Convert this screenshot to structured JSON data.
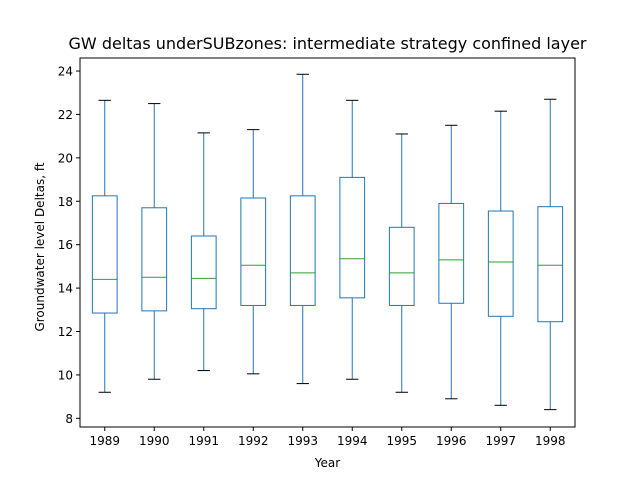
{
  "chart_data": {
    "type": "box",
    "title": "GW deltas underSUBzones: intermediate strategy confined layer",
    "xlabel": "Year",
    "ylabel": "Groundwater level Deltas, ft",
    "ylim": [
      7.6,
      24.6
    ],
    "yticks": [
      8,
      10,
      12,
      14,
      16,
      18,
      20,
      22,
      24
    ],
    "grid": false,
    "colors": {
      "box": "#1f77b4",
      "median": "#2ca02c",
      "whisker": "#1f77b4",
      "cap": "#000000",
      "axis": "#000000"
    },
    "categories": [
      "1989",
      "1990",
      "1991",
      "1992",
      "1993",
      "1994",
      "1995",
      "1996",
      "1997",
      "1998"
    ],
    "boxes": [
      {
        "category": "1989",
        "whislo": 9.2,
        "q1": 12.85,
        "median": 14.4,
        "q3": 18.25,
        "whishi": 22.65
      },
      {
        "category": "1990",
        "whislo": 9.8,
        "q1": 12.95,
        "median": 14.5,
        "q3": 17.7,
        "whishi": 22.5
      },
      {
        "category": "1991",
        "whislo": 10.2,
        "q1": 13.05,
        "median": 14.45,
        "q3": 16.4,
        "whishi": 21.15
      },
      {
        "category": "1992",
        "whislo": 10.05,
        "q1": 13.2,
        "median": 15.05,
        "q3": 18.15,
        "whishi": 21.3
      },
      {
        "category": "1993",
        "whislo": 9.6,
        "q1": 13.2,
        "median": 14.7,
        "q3": 18.25,
        "whishi": 23.85
      },
      {
        "category": "1994",
        "whislo": 9.8,
        "q1": 13.55,
        "median": 15.35,
        "q3": 19.1,
        "whishi": 22.65
      },
      {
        "category": "1995",
        "whislo": 9.2,
        "q1": 13.2,
        "median": 14.7,
        "q3": 16.8,
        "whishi": 21.1
      },
      {
        "category": "1996",
        "whislo": 8.9,
        "q1": 13.3,
        "median": 15.3,
        "q3": 17.9,
        "whishi": 21.5
      },
      {
        "category": "1997",
        "whislo": 8.6,
        "q1": 12.7,
        "median": 15.2,
        "q3": 17.55,
        "whishi": 22.15
      },
      {
        "category": "1998",
        "whislo": 8.4,
        "q1": 12.45,
        "median": 15.05,
        "q3": 17.75,
        "whishi": 22.7
      }
    ]
  }
}
